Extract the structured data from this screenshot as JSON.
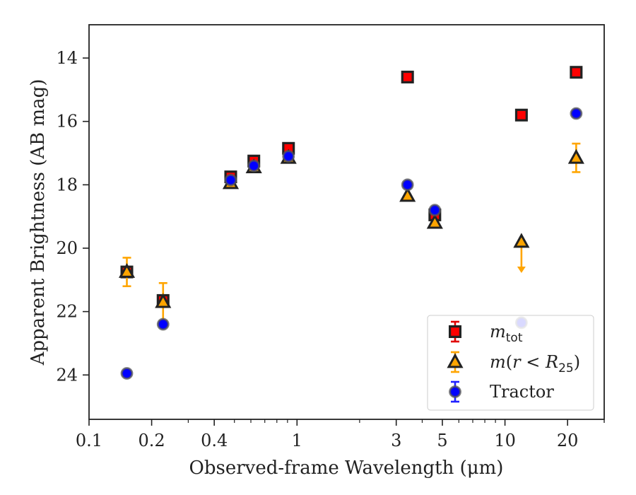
{
  "chart_data": {
    "type": "scatter",
    "xlabel": "Observed-frame Wavelength (μm)",
    "ylabel": "Apparent Brightness (AB mag)",
    "x_scale": "log",
    "xlim": [
      0.1,
      30
    ],
    "ylim": [
      25.4,
      12.95
    ],
    "y_inverted": true,
    "x_ticks": [
      0.1,
      0.2,
      0.4,
      1,
      3,
      5,
      10,
      20
    ],
    "x_tick_labels": [
      "0.1",
      "0.2",
      "0.4",
      "1",
      "3",
      "5",
      "10",
      "20"
    ],
    "y_ticks": [
      14,
      16,
      18,
      20,
      22,
      24
    ],
    "y_tick_labels": [
      "14",
      "16",
      "18",
      "20",
      "22",
      "24"
    ],
    "grid": false,
    "legend_position": "lower-right",
    "series": [
      {
        "name": "m_tot",
        "legend_label": "m_tot",
        "marker": "square",
        "face_color": "#ff0000",
        "edge_color": "#222222",
        "error_color": "#e00000",
        "points": [
          {
            "x": 0.152,
            "y": 20.75,
            "err": 0
          },
          {
            "x": 0.227,
            "y": 21.65,
            "err": 0
          },
          {
            "x": 0.48,
            "y": 17.75,
            "err": 0
          },
          {
            "x": 0.62,
            "y": 17.25,
            "err": 0
          },
          {
            "x": 0.91,
            "y": 16.85,
            "err": 0
          },
          {
            "x": 3.4,
            "y": 14.6,
            "err": 0
          },
          {
            "x": 4.6,
            "y": 18.95,
            "err": 0
          },
          {
            "x": 12.0,
            "y": 15.8,
            "err": 0
          },
          {
            "x": 22.0,
            "y": 14.45,
            "err": 0
          }
        ]
      },
      {
        "name": "m(r < R25)",
        "legend_label": "m(r < R25)",
        "marker": "triangle",
        "face_color": "#ffa500",
        "edge_color": "#222222",
        "error_color": "#ffa500",
        "points": [
          {
            "x": 0.152,
            "y": 20.75,
            "err": 0.45
          },
          {
            "x": 0.227,
            "y": 21.7,
            "err": 0.6
          },
          {
            "x": 0.48,
            "y": 17.95,
            "err": 0
          },
          {
            "x": 0.62,
            "y": 17.45,
            "err": 0
          },
          {
            "x": 0.91,
            "y": 17.15,
            "err": 0
          },
          {
            "x": 3.4,
            "y": 18.35,
            "err": 0
          },
          {
            "x": 4.6,
            "y": 19.2,
            "err": 0
          },
          {
            "x": 12.0,
            "y": 19.8,
            "err": 0,
            "upper_limit": true
          },
          {
            "x": 22.0,
            "y": 17.15,
            "err": 0.45
          }
        ]
      },
      {
        "name": "Tractor",
        "legend_label": "Tractor",
        "marker": "circle",
        "face_color": "#0000ff",
        "edge_color": "#555555",
        "error_color": "#2020ff",
        "points": [
          {
            "x": 0.152,
            "y": 23.95,
            "err": 0
          },
          {
            "x": 0.227,
            "y": 22.4,
            "err": 0
          },
          {
            "x": 0.48,
            "y": 17.85,
            "err": 0
          },
          {
            "x": 0.62,
            "y": 17.4,
            "err": 0
          },
          {
            "x": 0.91,
            "y": 17.1,
            "err": 0
          },
          {
            "x": 3.4,
            "y": 18.0,
            "err": 0
          },
          {
            "x": 4.6,
            "y": 18.8,
            "err": 0
          },
          {
            "x": 12.0,
            "y": 22.35,
            "err": 0
          },
          {
            "x": 22.0,
            "y": 15.75,
            "err": 0
          }
        ]
      }
    ]
  }
}
